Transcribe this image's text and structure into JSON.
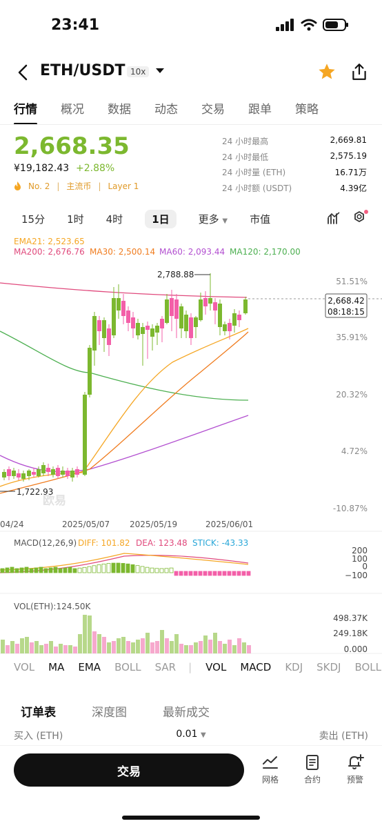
{
  "status_bar": {
    "time": "23:41"
  },
  "header": {
    "pair": "ETH/USDT",
    "leverage": "10x"
  },
  "tabs": [
    "行情",
    "概况",
    "数据",
    "动态",
    "交易",
    "跟单",
    "策略"
  ],
  "ticker": {
    "price": "2,668.35",
    "cny": "¥19,182.43",
    "change": "+2.88%",
    "tags": [
      "No. 2",
      "主流币",
      "Layer 1"
    ],
    "stats": [
      {
        "label": "24 小时最高",
        "value": "2,669.81"
      },
      {
        "label": "24 小时最低",
        "value": "2,575.19"
      },
      {
        "label": "24 小时量 (ETH)",
        "value": "16.71万"
      },
      {
        "label": "24 小时额 (USDT)",
        "value": "4.39亿"
      }
    ]
  },
  "timeframes": [
    "15分",
    "1时",
    "4时",
    "1日",
    "更多",
    "市值"
  ],
  "chart": {
    "ma_legend": {
      "ema21": "EMA21: 2,523.65",
      "ma200": "MA200: 2,676.76",
      "ma30": "MA30: 2,500.14",
      "ma60": "MA60: 2,093.44",
      "ma120": "MA120: 2,170.00"
    },
    "high_label": "2,788.88",
    "low_label": "1,722.93",
    "price_tag": "2,668.42",
    "countdown": "08:18:15",
    "axis_labels": [
      "51.51%",
      "35.91%",
      "20.32%",
      "4.72%",
      "-10.87%"
    ],
    "dates": [
      "04/24",
      "2025/05/07",
      "2025/05/19",
      "2025/06/01"
    ],
    "watermark": "欧易",
    "macd_legend": {
      "title": "MACD(12,26,9)",
      "diff": "DIFF: 101.82",
      "dea": "DEA: 123.48",
      "stick": "STICK: -43.33"
    },
    "macd_axis": [
      "200",
      "100",
      "0",
      "−100"
    ],
    "vol_legend": "VOL(ETH):124.50K",
    "vol_axis": [
      "498.37K",
      "249.18K",
      "0.000"
    ],
    "colors": {
      "up": "#7cb82f",
      "down": "#f35fa8",
      "ma200": "#e0497c",
      "ema21": "#f5a623",
      "ma30": "#f07c1f",
      "ma60": "#b24fd0",
      "ma120": "#4caf50"
    }
  },
  "indicators": [
    "VOL",
    "MA",
    "EMA",
    "BOLL",
    "SAR",
    "VOL",
    "MACD",
    "KDJ",
    "SKDJ",
    "BOLL"
  ],
  "orderbook": {
    "tabs": [
      "订单表",
      "深度图",
      "最新成交"
    ],
    "buy_label": "买入 (ETH)",
    "step": "0.01",
    "sell_label": "卖出 (ETH)"
  },
  "bottom": {
    "trade": "交易",
    "grid": "网格",
    "contract": "合约",
    "alert": "预警"
  }
}
